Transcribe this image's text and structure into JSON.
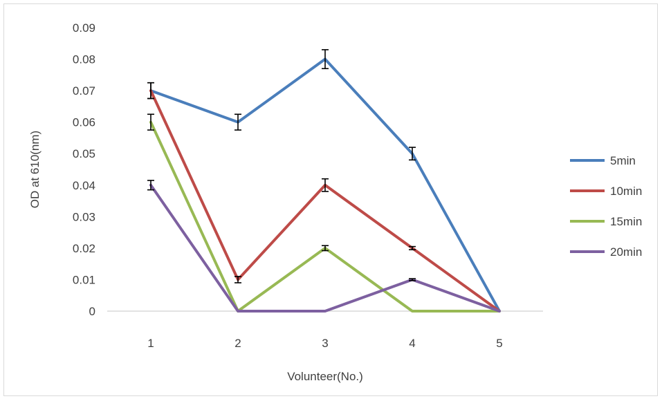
{
  "chart_data": {
    "type": "line",
    "xlabel": "Volunteer(No.)",
    "ylabel": "OD at 610(nm)",
    "x": [
      1,
      2,
      3,
      4,
      5
    ],
    "ylim": [
      0,
      0.09
    ],
    "yticks": [
      "0",
      "0.01",
      "0.02",
      "0.03",
      "0.04",
      "0.05",
      "0.06",
      "0.07",
      "0.08",
      "0.09"
    ],
    "grid": false,
    "legend_position": "right",
    "series": [
      {
        "name": "5min",
        "color": "#4a7ebb",
        "values": [
          0.07,
          0.06,
          0.08,
          0.05,
          0
        ],
        "errors": [
          0.0025,
          0.0025,
          0.003,
          0.002,
          0
        ]
      },
      {
        "name": "10min",
        "color": "#be4b48",
        "values": [
          0.07,
          0.01,
          0.04,
          0.02,
          0
        ],
        "errors": [
          0.0025,
          0.001,
          0.002,
          0.0005,
          0
        ]
      },
      {
        "name": "15min",
        "color": "#98b954",
        "values": [
          0.06,
          0,
          0.02,
          0,
          0
        ],
        "errors": [
          0.0025,
          0,
          0.0008,
          0,
          0
        ]
      },
      {
        "name": "20min",
        "color": "#7d60a0",
        "values": [
          0.04,
          0,
          0,
          0.01,
          0
        ],
        "errors": [
          0.0015,
          0,
          0,
          0.0003,
          0
        ]
      }
    ]
  }
}
